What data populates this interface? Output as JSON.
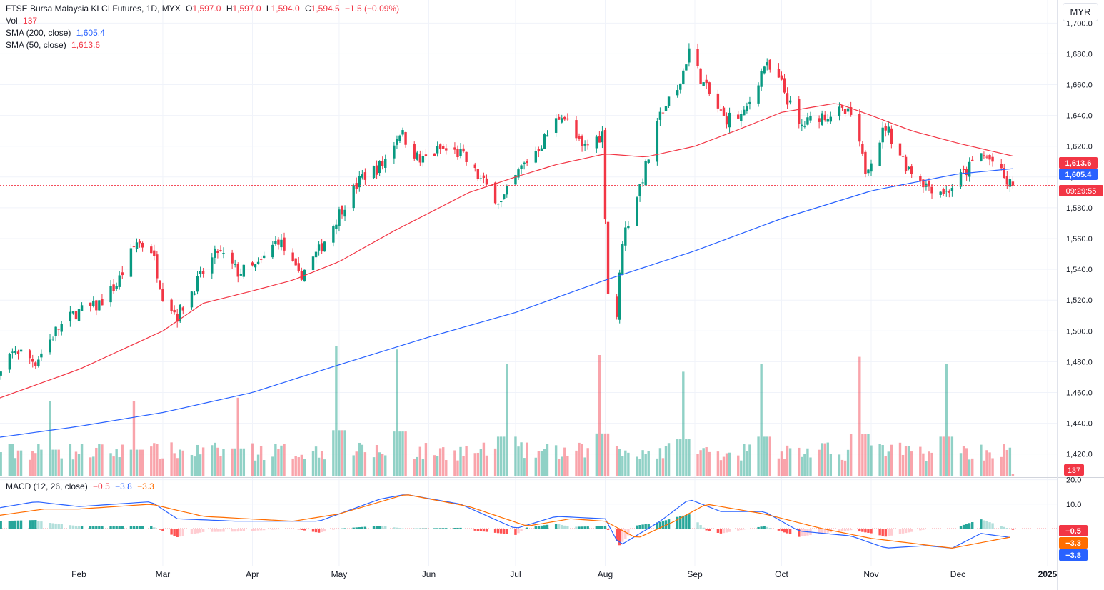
{
  "legend": {
    "symbol": "FTSE Bursa Malaysia KLCI Futures, 1D, MYX",
    "open_label": "O",
    "open": "1,597.0",
    "high_label": "H",
    "high": "1,597.0",
    "low_label": "L",
    "low": "1,594.0",
    "close_label": "C",
    "close": "1,594.5",
    "change": "−1.5 (−0.09%)",
    "vol_label": "Vol",
    "vol_value": "137",
    "sma200_label": "SMA (200, close)",
    "sma200_value": "1,605.4",
    "sma50_label": "SMA (50, close)",
    "sma50_value": "1,613.6",
    "macd_label": "MACD (12, 26, close)",
    "macd_hist": "−0.5",
    "macd_line": "−3.8",
    "macd_signal": "−3.3"
  },
  "currency_button": "MYR",
  "badges": {
    "sma50": "1,613.6",
    "sma200": "1,605.4",
    "countdown": "09:29:55",
    "volume": "137",
    "macd_hist": "−0.5",
    "macd_signal": "−3.3",
    "macd_line": "−3.8"
  },
  "colors": {
    "up": "#089981",
    "down": "#f23645",
    "sma200": "#2962ff",
    "sma50": "#f23645",
    "macd": "#2962ff",
    "signal": "#ff6d00"
  },
  "chart_data": {
    "type": "candlestick",
    "price_axis": {
      "ticks": [
        "1,420.0",
        "1,440.0",
        "1,460.0",
        "1,480.0",
        "1,500.0",
        "1,520.0",
        "1,540.0",
        "1,560.0",
        "1,580.0",
        "1,600.0",
        "1,620.0",
        "1,640.0",
        "1,660.0",
        "1,680.0",
        "1,700.0"
      ],
      "ylim": [
        1405,
        1715
      ]
    },
    "macd_axis": {
      "ticks": [
        "10.0",
        "20.0"
      ]
    },
    "time_axis": {
      "labels": [
        "Feb",
        "Mar",
        "Apr",
        "May",
        "Jun",
        "Jul",
        "Aug",
        "Sep",
        "Oct",
        "Nov",
        "Dec",
        "2025"
      ]
    },
    "last_price": 1594.5,
    "price_path": [
      [
        "2024-01-02",
        1462
      ],
      [
        "2024-01-10",
        1488
      ],
      [
        "2024-01-17",
        1480
      ],
      [
        "2024-01-24",
        1500
      ],
      [
        "2024-01-31",
        1512
      ],
      [
        "2024-02-07",
        1516
      ],
      [
        "2024-02-14",
        1530
      ],
      [
        "2024-02-21",
        1558
      ],
      [
        "2024-02-26",
        1553
      ],
      [
        "2024-03-01",
        1524
      ],
      [
        "2024-03-06",
        1510
      ],
      [
        "2024-03-13",
        1532
      ],
      [
        "2024-03-20",
        1552
      ],
      [
        "2024-03-27",
        1538
      ],
      [
        "2024-04-03",
        1542
      ],
      [
        "2024-04-10",
        1560
      ],
      [
        "2024-04-17",
        1535
      ],
      [
        "2024-04-24",
        1552
      ],
      [
        "2024-05-02",
        1580
      ],
      [
        "2024-05-09",
        1600
      ],
      [
        "2024-05-16",
        1608
      ],
      [
        "2024-05-22",
        1630
      ],
      [
        "2024-05-29",
        1610
      ],
      [
        "2024-06-05",
        1618
      ],
      [
        "2024-06-12",
        1615
      ],
      [
        "2024-06-19",
        1598
      ],
      [
        "2024-06-26",
        1583
      ],
      [
        "2024-07-03",
        1606
      ],
      [
        "2024-07-10",
        1622
      ],
      [
        "2024-07-17",
        1642
      ],
      [
        "2024-07-24",
        1618
      ],
      [
        "2024-07-31",
        1628
      ],
      [
        "2024-08-02",
        1525
      ],
      [
        "2024-08-05",
        1510
      ],
      [
        "2024-08-07",
        1560
      ],
      [
        "2024-08-14",
        1600
      ],
      [
        "2024-08-21",
        1645
      ],
      [
        "2024-08-26",
        1655
      ],
      [
        "2024-08-30",
        1683
      ],
      [
        "2024-09-04",
        1660
      ],
      [
        "2024-09-11",
        1638
      ],
      [
        "2024-09-18",
        1640
      ],
      [
        "2024-09-25",
        1673
      ],
      [
        "2024-10-01",
        1660
      ],
      [
        "2024-10-07",
        1632
      ],
      [
        "2024-10-14",
        1640
      ],
      [
        "2024-10-21",
        1642
      ],
      [
        "2024-10-25",
        1640
      ],
      [
        "2024-10-30",
        1605
      ],
      [
        "2024-11-06",
        1633
      ],
      [
        "2024-11-13",
        1608
      ],
      [
        "2024-11-20",
        1595
      ],
      [
        "2024-11-27",
        1590
      ],
      [
        "2024-12-04",
        1604
      ],
      [
        "2024-12-09",
        1615
      ],
      [
        "2024-12-13",
        1610
      ],
      [
        "2024-12-18",
        1596
      ],
      [
        "2024-12-20",
        1594.5
      ]
    ],
    "sma50_path": [
      [
        "2024-01-01",
        1454
      ],
      [
        "2024-02-01",
        1475
      ],
      [
        "2024-03-01",
        1500
      ],
      [
        "2024-03-15",
        1518
      ],
      [
        "2024-04-01",
        1526
      ],
      [
        "2024-04-15",
        1533
      ],
      [
        "2024-05-01",
        1545
      ],
      [
        "2024-05-20",
        1565
      ],
      [
        "2024-06-15",
        1590
      ],
      [
        "2024-07-01",
        1600
      ],
      [
        "2024-07-15",
        1608
      ],
      [
        "2024-08-01",
        1615
      ],
      [
        "2024-08-15",
        1613
      ],
      [
        "2024-09-01",
        1620
      ],
      [
        "2024-09-15",
        1630
      ],
      [
        "2024-10-01",
        1642
      ],
      [
        "2024-10-20",
        1648
      ],
      [
        "2024-11-01",
        1640
      ],
      [
        "2024-11-15",
        1630
      ],
      [
        "2024-12-01",
        1622
      ],
      [
        "2024-12-20",
        1613.6
      ]
    ],
    "sma200_path": [
      [
        "2024-01-01",
        1430
      ],
      [
        "2024-02-01",
        1438
      ],
      [
        "2024-03-01",
        1447
      ],
      [
        "2024-04-01",
        1460
      ],
      [
        "2024-05-01",
        1478
      ],
      [
        "2024-06-01",
        1496
      ],
      [
        "2024-07-01",
        1512
      ],
      [
        "2024-08-01",
        1533
      ],
      [
        "2024-09-01",
        1552
      ],
      [
        "2024-10-01",
        1573
      ],
      [
        "2024-11-01",
        1591
      ],
      [
        "2024-12-01",
        1602
      ],
      [
        "2024-12-20",
        1605.4
      ]
    ],
    "volume_spikes": [
      [
        "2024-01-22",
        40
      ],
      [
        "2024-02-20",
        40
      ],
      [
        "2024-03-27",
        42
      ],
      [
        "2024-04-30",
        70
      ],
      [
        "2024-05-21",
        68
      ],
      [
        "2024-06-28",
        60
      ],
      [
        "2024-07-30",
        65
      ],
      [
        "2024-08-28",
        56
      ],
      [
        "2024-09-24",
        60
      ],
      [
        "2024-10-28",
        64
      ],
      [
        "2024-11-27",
        60
      ]
    ],
    "macd_series": [
      [
        "2024-01-02",
        8
      ],
      [
        "2024-01-17",
        11
      ],
      [
        "2024-02-01",
        9
      ],
      [
        "2024-02-26",
        11
      ],
      [
        "2024-03-06",
        4
      ],
      [
        "2024-03-27",
        3
      ],
      [
        "2024-04-24",
        3
      ],
      [
        "2024-05-15",
        12
      ],
      [
        "2024-05-24",
        14
      ],
      [
        "2024-06-12",
        10
      ],
      [
        "2024-07-01",
        0
      ],
      [
        "2024-07-15",
        5
      ],
      [
        "2024-08-01",
        4
      ],
      [
        "2024-08-06",
        -7
      ],
      [
        "2024-08-20",
        3
      ],
      [
        "2024-08-30",
        12
      ],
      [
        "2024-09-10",
        7
      ],
      [
        "2024-09-25",
        7
      ],
      [
        "2024-10-07",
        -1
      ],
      [
        "2024-10-25",
        -3
      ],
      [
        "2024-11-06",
        -8
      ],
      [
        "2024-11-20",
        -7
      ],
      [
        "2024-11-29",
        -8
      ],
      [
        "2024-12-09",
        -2
      ],
      [
        "2024-12-20",
        -3.8
      ]
    ],
    "signal_series": [
      [
        "2024-01-02",
        5
      ],
      [
        "2024-01-20",
        8
      ],
      [
        "2024-02-01",
        8
      ],
      [
        "2024-02-26",
        10
      ],
      [
        "2024-03-15",
        5
      ],
      [
        "2024-04-15",
        3
      ],
      [
        "2024-05-01",
        6
      ],
      [
        "2024-05-24",
        14
      ],
      [
        "2024-06-15",
        9
      ],
      [
        "2024-07-05",
        1
      ],
      [
        "2024-07-20",
        4
      ],
      [
        "2024-08-01",
        3
      ],
      [
        "2024-08-12",
        -4
      ],
      [
        "2024-08-25",
        3
      ],
      [
        "2024-09-05",
        10
      ],
      [
        "2024-09-25",
        6
      ],
      [
        "2024-10-15",
        0
      ],
      [
        "2024-11-01",
        -4
      ],
      [
        "2024-11-29",
        -8
      ],
      [
        "2024-12-20",
        -3.3
      ]
    ]
  }
}
